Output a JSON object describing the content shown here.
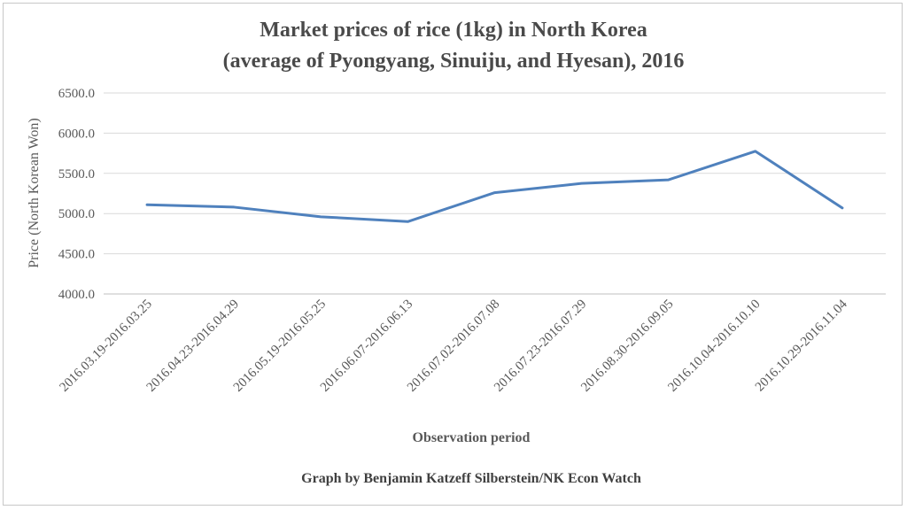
{
  "chart_data": {
    "type": "line",
    "title_line1": "Market prices of rice (1kg) in North Korea",
    "title_line2": "(average of Pyongyang, Sinuiju, and Hyesan), 2016",
    "xlabel": "Observation period",
    "ylabel": "Price (North Korean Won)",
    "credit": "Graph by Benjamin Katzeff Silberstein/NK Econ Watch",
    "ylim": [
      4000,
      6500
    ],
    "yticks": [
      "4000.0",
      "4500.0",
      "5000.0",
      "5500.0",
      "6000.0",
      "6500.0"
    ],
    "ytick_values": [
      4000,
      4500,
      5000,
      5500,
      6000,
      6500
    ],
    "grid": true,
    "line_color": "#4f81bd",
    "categories": [
      "2016.03.19-2016.03.25",
      "2016.04.23-2016.04.29",
      "2016.05.19-2016.05.25",
      "2016.06.07-2016.06.13",
      "2016.07.02-2016.07.08",
      "2016.07.23-2016.07.29",
      "2016.08.30-2016.09.05",
      "2016.10.04-2016.10.10",
      "2016.10.29-2016.11.04"
    ],
    "series": [
      {
        "values": [
          5110,
          5080,
          4960,
          4900,
          5260,
          5375,
          5420,
          5775,
          5070
        ]
      }
    ]
  }
}
